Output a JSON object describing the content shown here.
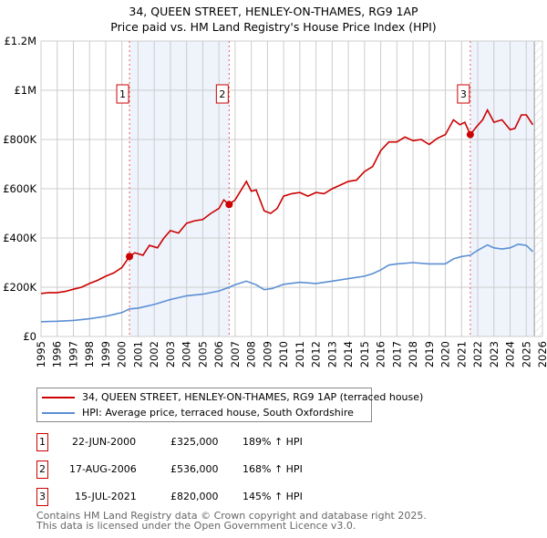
{
  "chart_data": {
    "type": "line",
    "title": "34, QUEEN STREET, HENLEY-ON-THAMES, RG9 1AP",
    "subtitle": "Price paid vs. HM Land Registry's House Price Index (HPI)",
    "xlim": [
      1995,
      2026
    ],
    "ylim": [
      0,
      1200000
    ],
    "x_ticks": [
      "1995",
      "1996",
      "1997",
      "1998",
      "1999",
      "2000",
      "2001",
      "2002",
      "2003",
      "2004",
      "2005",
      "2006",
      "2007",
      "2008",
      "2009",
      "2010",
      "2011",
      "2012",
      "2013",
      "2014",
      "2015",
      "2016",
      "2017",
      "2018",
      "2019",
      "2020",
      "2021",
      "2022",
      "2023",
      "2024",
      "2025",
      "2026"
    ],
    "y_ticks": [
      {
        "v": 0,
        "label": "£0"
      },
      {
        "v": 200000,
        "label": "£200K"
      },
      {
        "v": 400000,
        "label": "£400K"
      },
      {
        "v": 600000,
        "label": "£600K"
      },
      {
        "v": 800000,
        "label": "£800K"
      },
      {
        "v": 1000000,
        "label": "£1M"
      },
      {
        "v": 1200000,
        "label": "£1.2M"
      }
    ],
    "grid": true,
    "colors": {
      "property": "#cc0000",
      "hpi": "#5b8fd4",
      "shade": "#eef3fc"
    },
    "shaded_ranges": [
      [
        2000.47,
        2006.63
      ],
      [
        2021.54,
        2025.5
      ]
    ],
    "hatched_from": 2025.5,
    "series": [
      {
        "name": "34, QUEEN STREET, HENLEY-ON-THAMES, RG9 1AP (terraced house)",
        "color": "#cc0000",
        "x": [
          1995,
          1995.5,
          1996,
          1996.5,
          1997,
          1997.5,
          1998,
          1998.5,
          1999,
          1999.5,
          2000,
          2000.47,
          2000.8,
          2001.3,
          2001.7,
          2002.2,
          2002.6,
          2003,
          2003.5,
          2004,
          2004.5,
          2005,
          2005.5,
          2006,
          2006.3,
          2006.63,
          2007,
          2007.7,
          2008,
          2008.3,
          2008.8,
          2009.2,
          2009.6,
          2010,
          2010.5,
          2011,
          2011.5,
          2012,
          2012.5,
          2013,
          2013.5,
          2014,
          2014.5,
          2015,
          2015.5,
          2016,
          2016.5,
          2017,
          2017.5,
          2018,
          2018.5,
          2019,
          2019.5,
          2020,
          2020.5,
          2020.9,
          2021.2,
          2021.54,
          2021.9,
          2022.3,
          2022.6,
          2023,
          2023.5,
          2024,
          2024.3,
          2024.7,
          2025,
          2025.4
        ],
        "y": [
          175000,
          178000,
          178000,
          183000,
          192000,
          200000,
          215000,
          228000,
          245000,
          258000,
          280000,
          325000,
          340000,
          330000,
          370000,
          360000,
          400000,
          430000,
          420000,
          460000,
          470000,
          475000,
          500000,
          520000,
          555000,
          536000,
          555000,
          630000,
          590000,
          595000,
          510000,
          500000,
          520000,
          570000,
          580000,
          585000,
          570000,
          585000,
          580000,
          600000,
          615000,
          630000,
          635000,
          670000,
          690000,
          755000,
          790000,
          790000,
          810000,
          795000,
          800000,
          780000,
          805000,
          820000,
          880000,
          860000,
          870000,
          820000,
          850000,
          880000,
          920000,
          870000,
          880000,
          840000,
          845000,
          900000,
          900000,
          860000
        ]
      },
      {
        "name": "HPI: Average price, terraced house, South Oxfordshire",
        "color": "#5b8fd4",
        "x": [
          1995,
          1996,
          1997,
          1998,
          1999,
          2000,
          2000.47,
          2001,
          2002,
          2003,
          2004,
          2005,
          2006,
          2006.63,
          2007,
          2007.7,
          2008.3,
          2008.8,
          2009.3,
          2010,
          2011,
          2012,
          2013,
          2014,
          2015,
          2015.5,
          2016,
          2016.5,
          2017,
          2018,
          2019,
          2020,
          2020.5,
          2021,
          2021.54,
          2022,
          2022.6,
          2023,
          2023.5,
          2024,
          2024.5,
          2025,
          2025.4
        ],
        "y": [
          60000,
          62000,
          65000,
          72000,
          82000,
          97000,
          112000,
          115000,
          130000,
          150000,
          165000,
          172000,
          185000,
          200000,
          210000,
          225000,
          210000,
          190000,
          195000,
          212000,
          220000,
          215000,
          225000,
          235000,
          245000,
          255000,
          270000,
          290000,
          295000,
          300000,
          295000,
          295000,
          315000,
          325000,
          330000,
          350000,
          372000,
          360000,
          355000,
          360000,
          375000,
          370000,
          345000
        ]
      }
    ],
    "sales": [
      {
        "n": "1",
        "x": 2000.47,
        "y": 325000,
        "date": "22-JUN-2000",
        "price": "£325,000",
        "hpi": "189% ↑ HPI"
      },
      {
        "n": "2",
        "x": 2006.63,
        "y": 536000,
        "date": "17-AUG-2006",
        "price": "£536,000",
        "hpi": "168% ↑ HPI"
      },
      {
        "n": "3",
        "x": 2021.54,
        "y": 820000,
        "date": "15-JUL-2021",
        "price": "£820,000",
        "hpi": "145% ↑ HPI"
      }
    ]
  },
  "footer": {
    "line1": "Contains HM Land Registry data © Crown copyright and database right 2025.",
    "line2": "This data is licensed under the Open Government Licence v3.0."
  }
}
